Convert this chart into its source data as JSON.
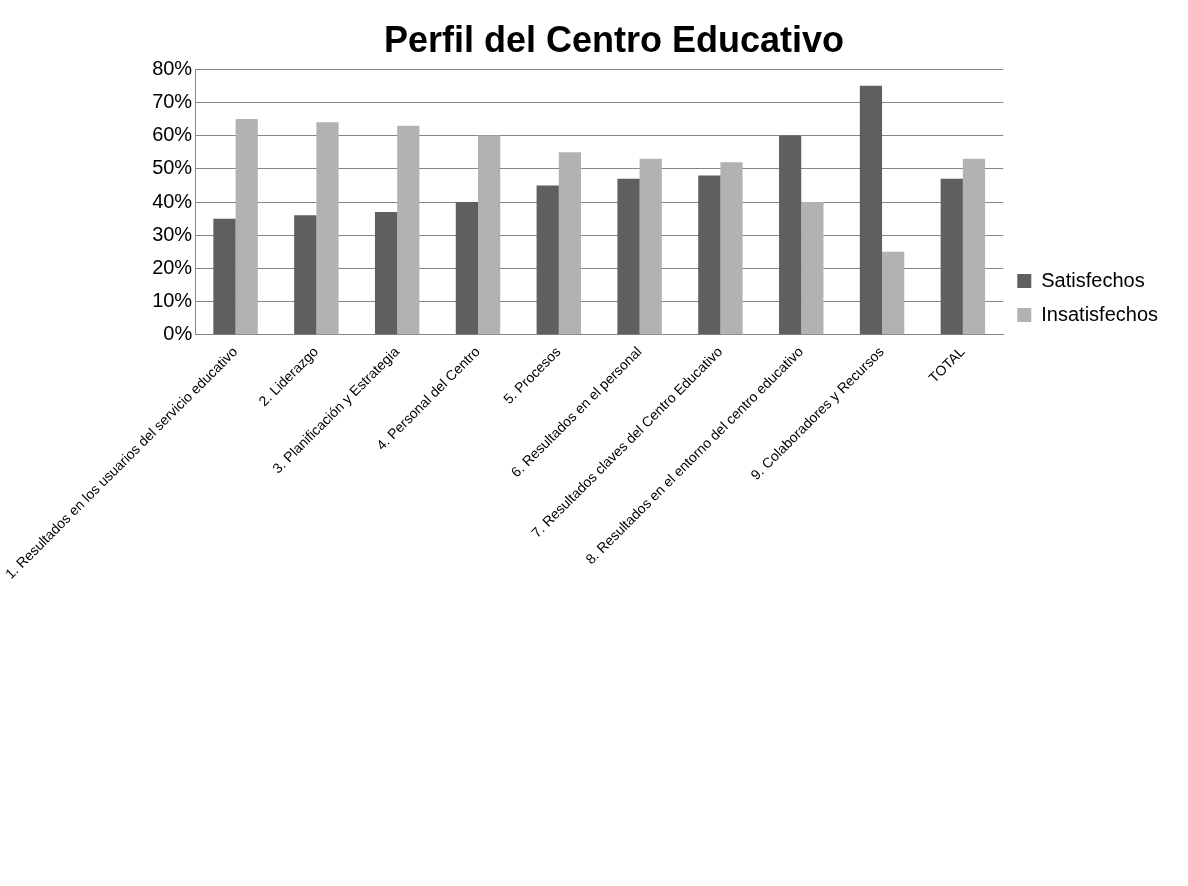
{
  "chart_data": {
    "type": "bar",
    "title": "Perfil del Centro Educativo",
    "categories": [
      "1. Resultados en los usuarios del servicio educativo",
      "2. Liderazgo",
      "3. Planificación y Estrategia",
      "4. Personal del Centro",
      "5. Procesos",
      "6. Resultados en el personal",
      "7. Resultados claves del Centro Educativo",
      "8. Resultados en el entorno del centro educativo",
      "9. Colaboradores y Recursos",
      "TOTAL"
    ],
    "series": [
      {
        "name": "Satisfechos",
        "color": "#5f5f5f",
        "values": [
          35,
          36,
          37,
          40,
          45,
          47,
          48,
          60,
          75,
          47
        ]
      },
      {
        "name": "Insatisfechos",
        "color": "#b2b2b2",
        "values": [
          65,
          64,
          63,
          60,
          55,
          53,
          52,
          40,
          25,
          53
        ]
      }
    ],
    "ylim": [
      0,
      80
    ],
    "yticks": [
      {
        "value": 0,
        "label": "0%"
      },
      {
        "value": 10,
        "label": "10%"
      },
      {
        "value": 20,
        "label": "20%"
      },
      {
        "value": 30,
        "label": "30%"
      },
      {
        "value": 40,
        "label": "40%"
      },
      {
        "value": 50,
        "label": "50%"
      },
      {
        "value": 60,
        "label": "60%"
      },
      {
        "value": 70,
        "label": "70%"
      },
      {
        "value": 80,
        "label": "80%"
      }
    ],
    "grid": "y",
    "legend": "right"
  }
}
